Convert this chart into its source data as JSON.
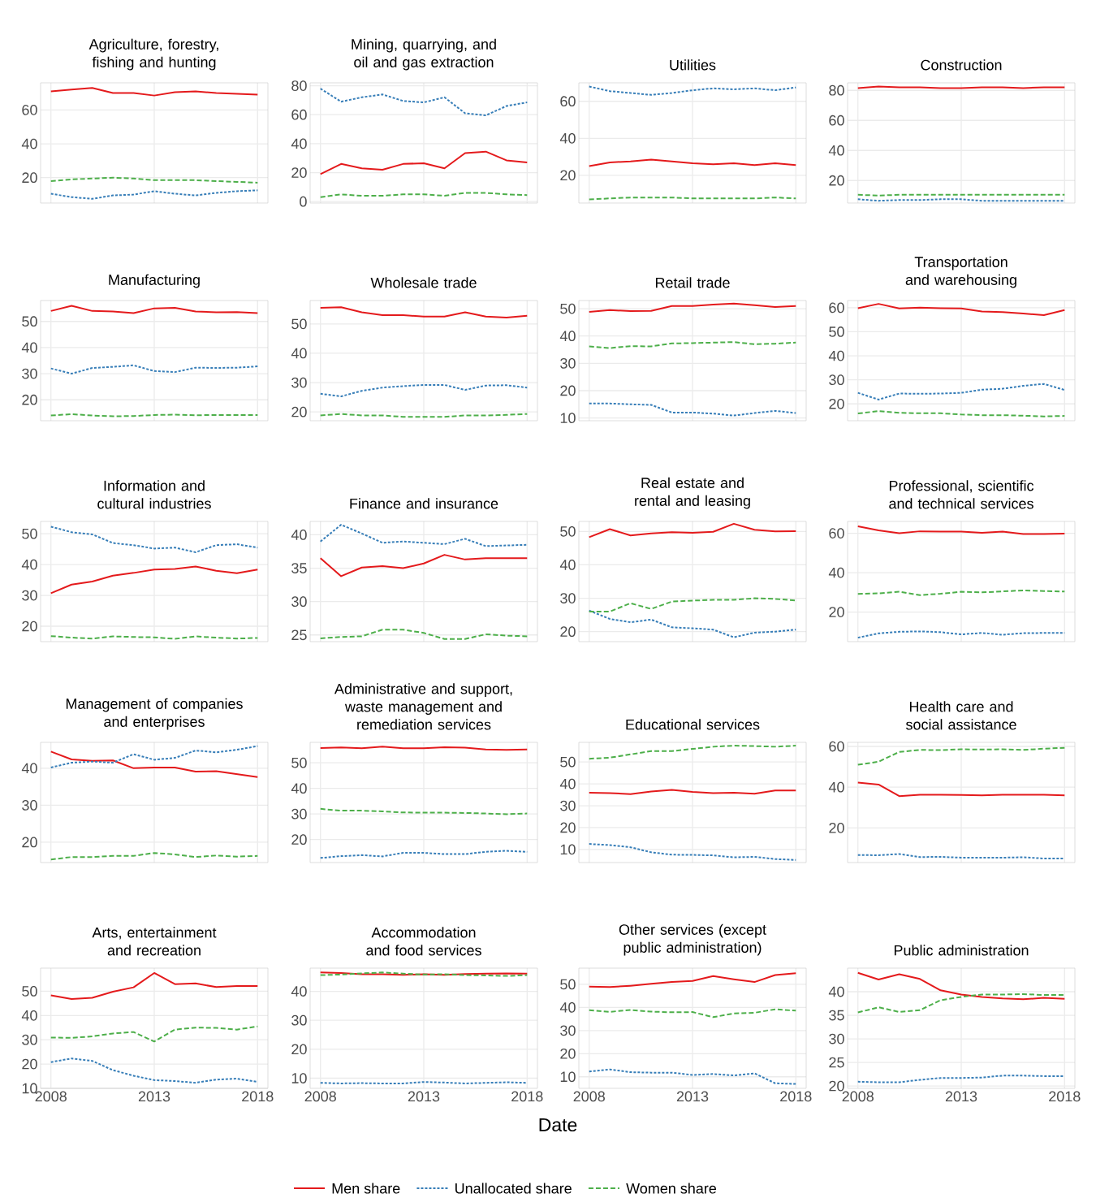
{
  "chart_data": [
    {
      "type": "line",
      "title": "Agriculture, forestry, fishing and hunting",
      "x": [
        2008,
        2009,
        2010,
        2011,
        2012,
        2013,
        2014,
        2015,
        2016,
        2017,
        2018
      ],
      "xlim": [
        2007.5,
        2018.5
      ],
      "xticks": [
        2008,
        2013,
        2018
      ],
      "ylim": [
        5,
        76
      ],
      "yticks": [
        20,
        40,
        60
      ],
      "grid": true,
      "tick_labels": "y",
      "series": [
        {
          "color": "#e41a1c",
          "line_style": "solid",
          "values": [
            71,
            72,
            73,
            70,
            70,
            68.5,
            70.5,
            71,
            70,
            69.5,
            69
          ]
        },
        {
          "color": "#377eb8",
          "line_style": "dotted",
          "values": [
            10.5,
            8.5,
            7.5,
            9.5,
            10,
            12,
            10.5,
            9.5,
            11,
            12,
            12.5
          ]
        },
        {
          "color": "#4daf4a",
          "line_style": "dashed",
          "values": [
            18,
            19,
            19.5,
            20,
            19.5,
            18.5,
            18.5,
            18.5,
            18,
            17.5,
            17
          ]
        }
      ]
    },
    {
      "type": "line",
      "title": "Mining, quarrying, and oil and gas extraction",
      "x": [
        2008,
        2009,
        2010,
        2011,
        2012,
        2013,
        2014,
        2015,
        2016,
        2017,
        2018
      ],
      "xlim": [
        2007.5,
        2018.5
      ],
      "xticks": [
        2008,
        2013,
        2018
      ],
      "ylim": [
        -1,
        82
      ],
      "yticks": [
        0,
        20,
        40,
        60,
        80
      ],
      "grid": true,
      "tick_labels": "y",
      "series": [
        {
          "color": "#e41a1c",
          "line_style": "solid",
          "values": [
            19,
            26,
            23,
            22,
            26,
            26.5,
            23,
            33.5,
            34.5,
            28.5,
            27
          ]
        },
        {
          "color": "#377eb8",
          "line_style": "dotted",
          "values": [
            78,
            69,
            72,
            74,
            69.5,
            68.5,
            72,
            61,
            59.5,
            66,
            68.5
          ]
        },
        {
          "color": "#4daf4a",
          "line_style": "dashed",
          "values": [
            3,
            5,
            4,
            4,
            5,
            5,
            4,
            6,
            6,
            5,
            4.5
          ]
        }
      ]
    },
    {
      "type": "line",
      "title": "Utilities",
      "x": [
        2008,
        2009,
        2010,
        2011,
        2012,
        2013,
        2014,
        2015,
        2016,
        2017,
        2018
      ],
      "xlim": [
        2007.5,
        2018.5
      ],
      "xticks": [
        2008,
        2013,
        2018
      ],
      "ylim": [
        5,
        70
      ],
      "yticks": [
        20,
        40,
        60
      ],
      "grid": true,
      "tick_labels": "y",
      "series": [
        {
          "color": "#e41a1c",
          "line_style": "solid",
          "values": [
            25,
            27,
            27.5,
            28.5,
            27.5,
            26.5,
            26,
            26.5,
            25.5,
            26.5,
            25.5
          ]
        },
        {
          "color": "#377eb8",
          "line_style": "dotted",
          "values": [
            68,
            65.5,
            64.5,
            63.5,
            64.5,
            66,
            67,
            66.5,
            67,
            66,
            67.5
          ]
        },
        {
          "color": "#4daf4a",
          "line_style": "dashed",
          "values": [
            7,
            7.5,
            8,
            8,
            8,
            7.5,
            7.5,
            7.5,
            7.5,
            8,
            7.5
          ]
        }
      ]
    },
    {
      "type": "line",
      "title": "Construction",
      "x": [
        2008,
        2009,
        2010,
        2011,
        2012,
        2013,
        2014,
        2015,
        2016,
        2017,
        2018
      ],
      "xlim": [
        2007.5,
        2018.5
      ],
      "xticks": [
        2008,
        2013,
        2018
      ],
      "ylim": [
        5,
        85
      ],
      "yticks": [
        20,
        40,
        60,
        80
      ],
      "grid": true,
      "tick_labels": "y",
      "series": [
        {
          "color": "#e41a1c",
          "line_style": "solid",
          "values": [
            81.5,
            82.5,
            82,
            82,
            81.5,
            81.5,
            82,
            82,
            81.5,
            82,
            82
          ]
        },
        {
          "color": "#377eb8",
          "line_style": "dotted",
          "values": [
            7.5,
            6.5,
            7,
            7,
            7.5,
            7.5,
            6.5,
            6.5,
            6.5,
            6.5,
            6.5
          ]
        },
        {
          "color": "#4daf4a",
          "line_style": "dashed",
          "values": [
            10.5,
            10,
            10.5,
            10.5,
            10.5,
            10.5,
            10.5,
            10.5,
            10.5,
            10.5,
            10.5
          ]
        }
      ]
    },
    {
      "type": "line",
      "title": "Manufacturing",
      "x": [
        2008,
        2009,
        2010,
        2011,
        2012,
        2013,
        2014,
        2015,
        2016,
        2017,
        2018
      ],
      "xlim": [
        2007.5,
        2018.5
      ],
      "xticks": [
        2008,
        2013,
        2018
      ],
      "ylim": [
        12,
        58
      ],
      "yticks": [
        20,
        30,
        40,
        50
      ],
      "grid": true,
      "tick_labels": "y",
      "series": [
        {
          "color": "#e41a1c",
          "line_style": "solid",
          "values": [
            54,
            56,
            54,
            53.8,
            53.2,
            55,
            55.2,
            53.8,
            53.5,
            53.6,
            53.2
          ]
        },
        {
          "color": "#377eb8",
          "line_style": "dotted",
          "values": [
            32,
            30,
            32.2,
            32.6,
            33.2,
            31,
            30.6,
            32.3,
            32.2,
            32.3,
            32.8
          ]
        },
        {
          "color": "#4daf4a",
          "line_style": "dashed",
          "values": [
            14,
            14.5,
            14,
            13.7,
            13.8,
            14.2,
            14.3,
            14.1,
            14.2,
            14.2,
            14.2
          ]
        }
      ]
    },
    {
      "type": "line",
      "title": "Wholesale trade",
      "x": [
        2008,
        2009,
        2010,
        2011,
        2012,
        2013,
        2014,
        2015,
        2016,
        2017,
        2018
      ],
      "xlim": [
        2007.5,
        2018.5
      ],
      "xticks": [
        2008,
        2013,
        2018
      ],
      "ylim": [
        17,
        58
      ],
      "yticks": [
        20,
        30,
        40,
        50
      ],
      "grid": true,
      "tick_labels": "y",
      "series": [
        {
          "color": "#e41a1c",
          "line_style": "solid",
          "values": [
            55.5,
            55.7,
            54,
            53,
            53,
            52.5,
            52.5,
            54,
            52.5,
            52.2,
            52.8
          ]
        },
        {
          "color": "#377eb8",
          "line_style": "dotted",
          "values": [
            26.2,
            25.3,
            27.2,
            28.3,
            28.8,
            29.2,
            29.2,
            27.5,
            29,
            29.1,
            28.3
          ]
        },
        {
          "color": "#4daf4a",
          "line_style": "dashed",
          "values": [
            18.8,
            19.3,
            18.8,
            18.8,
            18.3,
            18.3,
            18.3,
            18.8,
            18.8,
            19,
            19.3
          ]
        }
      ]
    },
    {
      "type": "line",
      "title": "Retail trade",
      "x": [
        2008,
        2009,
        2010,
        2011,
        2012,
        2013,
        2014,
        2015,
        2016,
        2017,
        2018
      ],
      "xlim": [
        2007.5,
        2018.5
      ],
      "xticks": [
        2008,
        2013,
        2018
      ],
      "ylim": [
        9,
        53
      ],
      "yticks": [
        10,
        20,
        30,
        40,
        50
      ],
      "grid": true,
      "tick_labels": "y",
      "series": [
        {
          "color": "#e41a1c",
          "line_style": "solid",
          "values": [
            48.8,
            49.5,
            49.1,
            49.2,
            51,
            51,
            51.5,
            51.9,
            51.3,
            50.6,
            51
          ]
        },
        {
          "color": "#377eb8",
          "line_style": "dotted",
          "values": [
            15.3,
            15.3,
            15,
            14.8,
            12,
            12,
            11.6,
            10.9,
            11.8,
            12.6,
            11.8
          ]
        },
        {
          "color": "#4daf4a",
          "line_style": "dashed",
          "values": [
            36.2,
            35.6,
            36.3,
            36.2,
            37.3,
            37.4,
            37.6,
            37.8,
            37,
            37.2,
            37.6
          ]
        }
      ]
    },
    {
      "type": "line",
      "title": "Transportation and warehousing",
      "x": [
        2008,
        2009,
        2010,
        2011,
        2012,
        2013,
        2014,
        2015,
        2016,
        2017,
        2018
      ],
      "xlim": [
        2007.5,
        2018.5
      ],
      "xticks": [
        2008,
        2013,
        2018
      ],
      "ylim": [
        13,
        63
      ],
      "yticks": [
        20,
        30,
        40,
        50,
        60
      ],
      "grid": true,
      "tick_labels": "y",
      "series": [
        {
          "color": "#e41a1c",
          "line_style": "solid",
          "values": [
            59.8,
            61.6,
            59.7,
            60,
            59.8,
            59.7,
            58.4,
            58.2,
            57.6,
            56.9,
            59
          ]
        },
        {
          "color": "#377eb8",
          "line_style": "dotted",
          "values": [
            24.6,
            21.8,
            24.3,
            24.2,
            24.3,
            24.6,
            25.9,
            26.3,
            27.5,
            28.3,
            25.8
          ]
        },
        {
          "color": "#4daf4a",
          "line_style": "dashed",
          "values": [
            16,
            17,
            16.3,
            16.1,
            16.1,
            15.6,
            15.3,
            15.3,
            15.1,
            14.8,
            15
          ]
        }
      ]
    },
    {
      "type": "line",
      "title": "Information and cultural industries",
      "x": [
        2008,
        2009,
        2010,
        2011,
        2012,
        2013,
        2014,
        2015,
        2016,
        2017,
        2018
      ],
      "xlim": [
        2007.5,
        2018.5
      ],
      "xticks": [
        2008,
        2013,
        2018
      ],
      "ylim": [
        15,
        54
      ],
      "yticks": [
        20,
        30,
        40,
        50
      ],
      "grid": true,
      "tick_labels": "y",
      "series": [
        {
          "color": "#e41a1c",
          "line_style": "solid",
          "values": [
            30.7,
            33.5,
            34.5,
            36.4,
            37.3,
            38.4,
            38.6,
            39.4,
            38,
            37.2,
            38.4
          ]
        },
        {
          "color": "#377eb8",
          "line_style": "dotted",
          "values": [
            52.3,
            50.5,
            49.8,
            47,
            46.3,
            45.2,
            45.5,
            44,
            46.3,
            46.6,
            45.5
          ]
        },
        {
          "color": "#4daf4a",
          "line_style": "dashed",
          "values": [
            16.8,
            16.3,
            16,
            16.7,
            16.5,
            16.4,
            15.9,
            16.7,
            16.3,
            16,
            16.2
          ]
        }
      ]
    },
    {
      "type": "line",
      "title": "Finance and insurance",
      "x": [
        2008,
        2009,
        2010,
        2011,
        2012,
        2013,
        2014,
        2015,
        2016,
        2017,
        2018
      ],
      "xlim": [
        2007.5,
        2018.5
      ],
      "xticks": [
        2008,
        2013,
        2018
      ],
      "ylim": [
        24,
        42
      ],
      "yticks": [
        25,
        30,
        35,
        40
      ],
      "grid": true,
      "tick_labels": "y",
      "series": [
        {
          "color": "#e41a1c",
          "line_style": "solid",
          "values": [
            36.5,
            33.8,
            35.1,
            35.3,
            35,
            35.7,
            37,
            36.3,
            36.5,
            36.5,
            36.5
          ]
        },
        {
          "color": "#377eb8",
          "line_style": "dotted",
          "values": [
            39,
            41.5,
            40.2,
            38.8,
            39,
            38.8,
            38.6,
            39.4,
            38.3,
            38.4,
            38.5
          ]
        },
        {
          "color": "#4daf4a",
          "line_style": "dashed",
          "values": [
            24.5,
            24.7,
            24.8,
            25.8,
            25.8,
            25.3,
            24.4,
            24.4,
            25.1,
            24.9,
            24.8
          ]
        }
      ]
    },
    {
      "type": "line",
      "title": "Real estate and rental and leasing",
      "x": [
        2008,
        2009,
        2010,
        2011,
        2012,
        2013,
        2014,
        2015,
        2016,
        2017,
        2018
      ],
      "xlim": [
        2007.5,
        2018.5
      ],
      "xticks": [
        2008,
        2013,
        2018
      ],
      "ylim": [
        17,
        53
      ],
      "yticks": [
        20,
        30,
        40,
        50
      ],
      "grid": true,
      "tick_labels": "y",
      "series": [
        {
          "color": "#e41a1c",
          "line_style": "solid",
          "values": [
            48.3,
            50.7,
            48.8,
            49.4,
            49.8,
            49.6,
            49.9,
            52.3,
            50.5,
            50,
            50.1
          ]
        },
        {
          "color": "#377eb8",
          "line_style": "dotted",
          "values": [
            26.3,
            23.8,
            22.8,
            23.6,
            21.3,
            21,
            20.6,
            18.3,
            19.7,
            20,
            20.6
          ]
        },
        {
          "color": "#4daf4a",
          "line_style": "dashed",
          "values": [
            26,
            26,
            28.5,
            26.8,
            29,
            29.3,
            29.5,
            29.5,
            30,
            29.8,
            29.3
          ]
        }
      ]
    },
    {
      "type": "line",
      "title": "Professional, scientific and technical services",
      "x": [
        2008,
        2009,
        2010,
        2011,
        2012,
        2013,
        2014,
        2015,
        2016,
        2017,
        2018
      ],
      "xlim": [
        2007.5,
        2018.5
      ],
      "xticks": [
        2008,
        2013,
        2018
      ],
      "ylim": [
        5,
        66
      ],
      "yticks": [
        20,
        40,
        60
      ],
      "grid": true,
      "tick_labels": "y",
      "series": [
        {
          "color": "#e41a1c",
          "line_style": "solid",
          "values": [
            63.5,
            61.5,
            60,
            61,
            60.8,
            60.8,
            60.2,
            60.8,
            59.6,
            59.6,
            59.8
          ]
        },
        {
          "color": "#377eb8",
          "line_style": "dotted",
          "values": [
            7,
            9.2,
            10,
            10.2,
            9.8,
            8.7,
            9.4,
            8.5,
            9.3,
            9.4,
            9.4
          ]
        },
        {
          "color": "#4daf4a",
          "line_style": "dashed",
          "values": [
            29.2,
            29.5,
            30.3,
            28.6,
            29.3,
            30.3,
            30,
            30.5,
            31,
            30.7,
            30.4
          ]
        }
      ]
    },
    {
      "type": "line",
      "title": "Management of companies and enterprises",
      "x": [
        2008,
        2009,
        2010,
        2011,
        2012,
        2013,
        2014,
        2015,
        2016,
        2017,
        2018
      ],
      "xlim": [
        2007.5,
        2018.5
      ],
      "xticks": [
        2008,
        2013,
        2018
      ],
      "ylim": [
        14.5,
        47
      ],
      "yticks": [
        20,
        30,
        40
      ],
      "grid": true,
      "tick_labels": "y",
      "series": [
        {
          "color": "#e41a1c",
          "line_style": "solid",
          "values": [
            44.5,
            42.4,
            42,
            42.1,
            40,
            40.2,
            40.2,
            39.1,
            39.2,
            38.4,
            37.6
          ]
        },
        {
          "color": "#377eb8",
          "line_style": "dotted",
          "values": [
            40.2,
            41.5,
            41.8,
            41.5,
            43.8,
            42.3,
            42.8,
            44.8,
            44.3,
            45,
            46
          ]
        },
        {
          "color": "#4daf4a",
          "line_style": "dashed",
          "values": [
            15.3,
            16,
            16,
            16.3,
            16.3,
            17.1,
            16.7,
            16,
            16.4,
            16.1,
            16.3
          ]
        }
      ]
    },
    {
      "type": "line",
      "title": "Administrative and support, waste management and remediation services",
      "x": [
        2008,
        2009,
        2010,
        2011,
        2012,
        2013,
        2014,
        2015,
        2016,
        2017,
        2018
      ],
      "xlim": [
        2007.5,
        2018.5
      ],
      "xticks": [
        2008,
        2013,
        2018
      ],
      "ylim": [
        11,
        58
      ],
      "yticks": [
        20,
        30,
        40,
        50
      ],
      "grid": true,
      "tick_labels": "y",
      "series": [
        {
          "color": "#e41a1c",
          "line_style": "solid",
          "values": [
            55.8,
            56,
            55.7,
            56.3,
            55.7,
            55.7,
            56.1,
            55.9,
            55.2,
            55.1,
            55.2
          ]
        },
        {
          "color": "#377eb8",
          "line_style": "dotted",
          "values": [
            12.8,
            13.5,
            13.9,
            13.4,
            14.8,
            14.8,
            14.3,
            14.3,
            15.2,
            15.6,
            15.2
          ]
        },
        {
          "color": "#4daf4a",
          "line_style": "dashed",
          "values": [
            32,
            31.3,
            31.3,
            31,
            30.6,
            30.5,
            30.5,
            30.4,
            30.2,
            29.9,
            30.2
          ]
        }
      ]
    },
    {
      "type": "line",
      "title": "Educational services",
      "x": [
        2008,
        2009,
        2010,
        2011,
        2012,
        2013,
        2014,
        2015,
        2016,
        2017,
        2018
      ],
      "xlim": [
        2007.5,
        2018.5
      ],
      "xticks": [
        2008,
        2013,
        2018
      ],
      "ylim": [
        4,
        59
      ],
      "yticks": [
        10,
        20,
        30,
        40,
        50
      ],
      "grid": true,
      "tick_labels": "y",
      "series": [
        {
          "color": "#e41a1c",
          "line_style": "solid",
          "values": [
            36,
            35.8,
            35.3,
            36.5,
            37.3,
            36.3,
            35.8,
            36,
            35.5,
            37,
            37
          ]
        },
        {
          "color": "#377eb8",
          "line_style": "dotted",
          "values": [
            12.5,
            12,
            11,
            8.7,
            7.6,
            7.5,
            7.3,
            6.4,
            6.6,
            5.6,
            5.2
          ]
        },
        {
          "color": "#4daf4a",
          "line_style": "dashed",
          "values": [
            51.5,
            52,
            53.5,
            55,
            55,
            56,
            57,
            57.5,
            57.3,
            57,
            57.5
          ]
        }
      ]
    },
    {
      "type": "line",
      "title": "Health care and social assistance",
      "x": [
        2008,
        2009,
        2010,
        2011,
        2012,
        2013,
        2014,
        2015,
        2016,
        2017,
        2018
      ],
      "xlim": [
        2007.5,
        2018.5
      ],
      "xticks": [
        2008,
        2013,
        2018
      ],
      "ylim": [
        3,
        62
      ],
      "yticks": [
        20,
        40,
        60
      ],
      "grid": true,
      "tick_labels": "y",
      "series": [
        {
          "color": "#e41a1c",
          "line_style": "solid",
          "values": [
            42.3,
            41.3,
            35.6,
            36.3,
            36.3,
            36.2,
            36,
            36.3,
            36.3,
            36.3,
            36
          ]
        },
        {
          "color": "#377eb8",
          "line_style": "dotted",
          "values": [
            6.7,
            6.6,
            7.2,
            5.7,
            5.8,
            5.4,
            5.4,
            5.4,
            5.6,
            5,
            5
          ]
        },
        {
          "color": "#4daf4a",
          "line_style": "dashed",
          "values": [
            51,
            52.5,
            57.3,
            58.3,
            58.2,
            58.6,
            58.5,
            58.6,
            58.3,
            58.9,
            59.3
          ]
        }
      ]
    },
    {
      "type": "line",
      "title": "Arts, entertainment and recreation",
      "x": [
        2008,
        2009,
        2010,
        2011,
        2012,
        2013,
        2014,
        2015,
        2016,
        2017,
        2018
      ],
      "xlim": [
        2007.5,
        2018.5
      ],
      "xticks": [
        2008,
        2013,
        2018
      ],
      "ylim": [
        10,
        59.5
      ],
      "yticks": [
        10,
        20,
        30,
        40,
        50
      ],
      "grid": true,
      "series": [
        {
          "color": "#e41a1c",
          "line_style": "solid",
          "values": [
            48.3,
            46.8,
            47.3,
            49.8,
            51.6,
            57.5,
            52.9,
            53.2,
            51.7,
            52.1,
            52.1
          ]
        },
        {
          "color": "#377eb8",
          "line_style": "dotted",
          "values": [
            20.8,
            22.3,
            21.3,
            17.5,
            15.2,
            13.4,
            13,
            12.3,
            13.6,
            14,
            12.7
          ]
        },
        {
          "color": "#4daf4a",
          "line_style": "dashed",
          "values": [
            30.9,
            30.8,
            31.4,
            32.6,
            33.2,
            29.3,
            34.2,
            35,
            34.9,
            34.2,
            35.5
          ]
        }
      ]
    },
    {
      "type": "line",
      "title": "Accommodation and food services",
      "xlabel": "Date",
      "x": [
        2008,
        2009,
        2010,
        2011,
        2012,
        2013,
        2014,
        2015,
        2016,
        2017,
        2018
      ],
      "xlim": [
        2007.5,
        2018.5
      ],
      "xticks": [
        2008,
        2013,
        2018
      ],
      "ylim": [
        6.5,
        48
      ],
      "yticks": [
        10,
        20,
        30,
        40
      ],
      "grid": true,
      "series": [
        {
          "color": "#e41a1c",
          "line_style": "solid",
          "values": [
            46.5,
            46.3,
            45.9,
            45.9,
            45.7,
            45.9,
            45.7,
            46,
            46.1,
            46.2,
            46.1
          ]
        },
        {
          "color": "#377eb8",
          "line_style": "dotted",
          "values": [
            8.4,
            8.2,
            8.3,
            8.2,
            8.2,
            8.7,
            8.5,
            8.2,
            8.4,
            8.6,
            8.4
          ]
        },
        {
          "color": "#4daf4a",
          "line_style": "dashed",
          "values": [
            45.6,
            45.8,
            46.2,
            46.5,
            46.1,
            45.8,
            45.9,
            45.6,
            45.5,
            45.3,
            45.6
          ]
        }
      ]
    },
    {
      "type": "line",
      "title": "Other services (except public administration)",
      "x": [
        2008,
        2009,
        2010,
        2011,
        2012,
        2013,
        2014,
        2015,
        2016,
        2017,
        2018
      ],
      "xlim": [
        2007.5,
        2018.5
      ],
      "xticks": [
        2008,
        2013,
        2018
      ],
      "ylim": [
        5,
        57
      ],
      "yticks": [
        10,
        20,
        30,
        40,
        50
      ],
      "grid": true,
      "series": [
        {
          "color": "#e41a1c",
          "line_style": "solid",
          "values": [
            49,
            48.8,
            49.4,
            50.2,
            51,
            51.5,
            53.6,
            52.2,
            51,
            54,
            54.8
          ]
        },
        {
          "color": "#377eb8",
          "line_style": "dotted",
          "values": [
            12.3,
            13.2,
            12,
            11.8,
            11.8,
            10.8,
            11.2,
            10.6,
            11.5,
            7.2,
            6.9
          ]
        },
        {
          "color": "#4daf4a",
          "line_style": "dashed",
          "values": [
            38.8,
            38.1,
            38.9,
            38.2,
            37.9,
            38,
            35.8,
            37.4,
            37.7,
            39.2,
            38.6
          ]
        }
      ]
    },
    {
      "type": "line",
      "title": "Public administration",
      "x": [
        2008,
        2009,
        2010,
        2011,
        2012,
        2013,
        2014,
        2015,
        2016,
        2017,
        2018
      ],
      "xlim": [
        2007.5,
        2018.5
      ],
      "xticks": [
        2008,
        2013,
        2018
      ],
      "ylim": [
        19.5,
        45
      ],
      "yticks": [
        20,
        25,
        30,
        35,
        40
      ],
      "grid": true,
      "legend": "bottom",
      "series": [
        {
          "name": "Men share",
          "color": "#e41a1c",
          "line_style": "solid",
          "values": [
            44,
            42.6,
            43.7,
            42.7,
            40.3,
            39.4,
            38.9,
            38.6,
            38.4,
            38.7,
            38.5
          ]
        },
        {
          "name": "Unallocated share",
          "color": "#377eb8",
          "line_style": "dotted",
          "values": [
            20.9,
            20.8,
            20.8,
            21.3,
            21.7,
            21.7,
            21.8,
            22.2,
            22.2,
            22.1,
            22.1
          ]
        },
        {
          "name": "Women share",
          "color": "#4daf4a",
          "line_style": "dashed",
          "values": [
            35.6,
            36.7,
            35.7,
            36.1,
            38.2,
            38.9,
            39.4,
            39.4,
            39.5,
            39.3,
            39.3
          ]
        }
      ]
    }
  ]
}
